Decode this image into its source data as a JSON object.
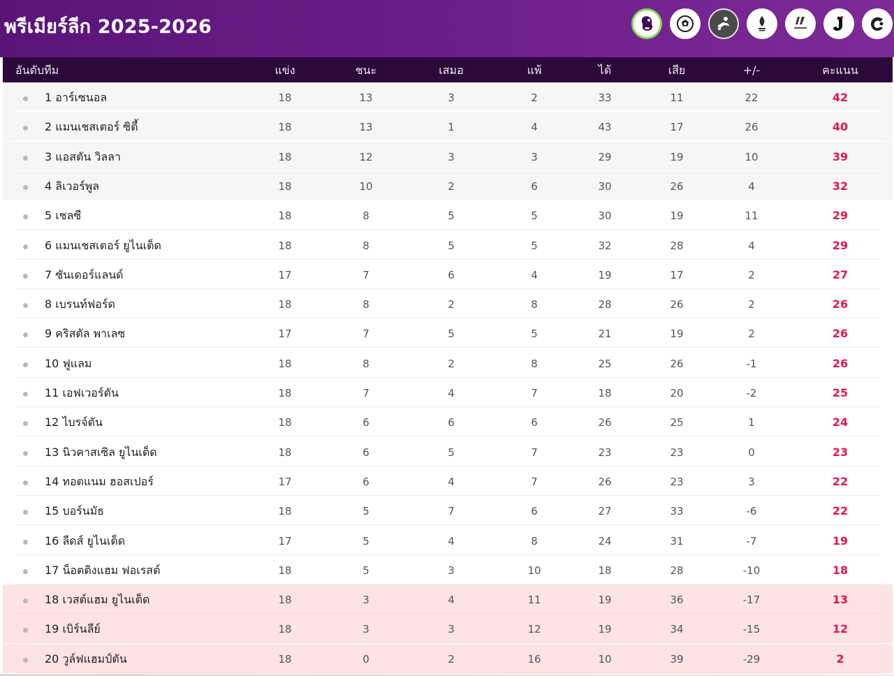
{
  "header": {
    "title": "พรีเมียร์ลีก 2025-2026",
    "leagues": [
      {
        "icon": "premier-league-icon",
        "active": true
      },
      {
        "icon": "champions-league-icon",
        "active": false
      },
      {
        "icon": "bundesliga-icon",
        "active": false
      },
      {
        "icon": "serie-a-icon",
        "active": false
      },
      {
        "icon": "laliga-icon",
        "active": false
      },
      {
        "icon": "j-league-icon",
        "active": false
      },
      {
        "icon": "thai-league-icon",
        "active": false
      }
    ]
  },
  "table": {
    "columns": {
      "team": "อันดับทีม",
      "played": "แข่ง",
      "won": "ชนะ",
      "drawn": "เสมอ",
      "lost": "แพ้",
      "gf": "ได้",
      "ga": "เสีย",
      "gd": "+/-",
      "pts": "คะแนน"
    },
    "colors": {
      "header_bg": "#2b0a3a",
      "points": "#e0194f",
      "top_zone_bg": "#f6f6f6",
      "relegation_bg": "#fde3e3"
    },
    "rows": [
      {
        "team": "1 อาร์เซนอล",
        "played": "18",
        "won": "13",
        "drawn": "3",
        "lost": "2",
        "gf": "33",
        "ga": "11",
        "gd": "22",
        "pts": "42",
        "zone": "top"
      },
      {
        "team": "2 แมนเชสเตอร์ ซิตี้",
        "played": "18",
        "won": "13",
        "drawn": "1",
        "lost": "4",
        "gf": "43",
        "ga": "17",
        "gd": "26",
        "pts": "40",
        "zone": "top"
      },
      {
        "team": "3 แอสตัน วิลลา",
        "played": "18",
        "won": "12",
        "drawn": "3",
        "lost": "3",
        "gf": "29",
        "ga": "19",
        "gd": "10",
        "pts": "39",
        "zone": "top"
      },
      {
        "team": "4 ลิเวอร์พูล",
        "played": "18",
        "won": "10",
        "drawn": "2",
        "lost": "6",
        "gf": "30",
        "ga": "26",
        "gd": "4",
        "pts": "32",
        "zone": "top"
      },
      {
        "team": "5 เชลซี",
        "played": "18",
        "won": "8",
        "drawn": "5",
        "lost": "5",
        "gf": "30",
        "ga": "19",
        "gd": "11",
        "pts": "29",
        "zone": "normal"
      },
      {
        "team": "6 แมนเชสเตอร์ ยูไนเต็ด",
        "played": "18",
        "won": "8",
        "drawn": "5",
        "lost": "5",
        "gf": "32",
        "ga": "28",
        "gd": "4",
        "pts": "29",
        "zone": "normal"
      },
      {
        "team": "7 ซันเดอร์แลนด์",
        "played": "17",
        "won": "7",
        "drawn": "6",
        "lost": "4",
        "gf": "19",
        "ga": "17",
        "gd": "2",
        "pts": "27",
        "zone": "normal"
      },
      {
        "team": "8 เบรนท์ฟอร์ด",
        "played": "18",
        "won": "8",
        "drawn": "2",
        "lost": "8",
        "gf": "28",
        "ga": "26",
        "gd": "2",
        "pts": "26",
        "zone": "normal"
      },
      {
        "team": "9 คริสตัล พาเลซ",
        "played": "17",
        "won": "7",
        "drawn": "5",
        "lost": "5",
        "gf": "21",
        "ga": "19",
        "gd": "2",
        "pts": "26",
        "zone": "normal"
      },
      {
        "team": "10 ฟูแลม",
        "played": "18",
        "won": "8",
        "drawn": "2",
        "lost": "8",
        "gf": "25",
        "ga": "26",
        "gd": "-1",
        "pts": "26",
        "zone": "normal"
      },
      {
        "team": "11 เอฟเวอร์ตัน",
        "played": "18",
        "won": "7",
        "drawn": "4",
        "lost": "7",
        "gf": "18",
        "ga": "20",
        "gd": "-2",
        "pts": "25",
        "zone": "normal"
      },
      {
        "team": "12 ไบรจ์ตัน",
        "played": "18",
        "won": "6",
        "drawn": "6",
        "lost": "6",
        "gf": "26",
        "ga": "25",
        "gd": "1",
        "pts": "24",
        "zone": "normal"
      },
      {
        "team": "13 นิวคาสเซิล ยูไนเต็ด",
        "played": "18",
        "won": "6",
        "drawn": "5",
        "lost": "7",
        "gf": "23",
        "ga": "23",
        "gd": "0",
        "pts": "23",
        "zone": "normal"
      },
      {
        "team": "14 ทอตแนม ฮอสเปอร์",
        "played": "17",
        "won": "6",
        "drawn": "4",
        "lost": "7",
        "gf": "26",
        "ga": "23",
        "gd": "3",
        "pts": "22",
        "zone": "normal"
      },
      {
        "team": "15 บอร์นมัธ",
        "played": "18",
        "won": "5",
        "drawn": "7",
        "lost": "6",
        "gf": "27",
        "ga": "33",
        "gd": "-6",
        "pts": "22",
        "zone": "normal"
      },
      {
        "team": "16 ลีดส์ ยูไนเต็ด",
        "played": "17",
        "won": "5",
        "drawn": "4",
        "lost": "8",
        "gf": "24",
        "ga": "31",
        "gd": "-7",
        "pts": "19",
        "zone": "normal"
      },
      {
        "team": "17 น็อตติงแฮม ฟอเรสต์",
        "played": "18",
        "won": "5",
        "drawn": "3",
        "lost": "10",
        "gf": "18",
        "ga": "28",
        "gd": "-10",
        "pts": "18",
        "zone": "normal"
      },
      {
        "team": "18 เวสต์แฮม ยูไนเต็ด",
        "played": "18",
        "won": "3",
        "drawn": "4",
        "lost": "11",
        "gf": "19",
        "ga": "36",
        "gd": "-17",
        "pts": "13",
        "zone": "relegation"
      },
      {
        "team": "19 เบิร์นลีย์",
        "played": "18",
        "won": "3",
        "drawn": "3",
        "lost": "12",
        "gf": "19",
        "ga": "34",
        "gd": "-15",
        "pts": "12",
        "zone": "relegation"
      },
      {
        "team": "20 วูล์ฟแฮมป์ตัน",
        "played": "18",
        "won": "0",
        "drawn": "2",
        "lost": "16",
        "gf": "10",
        "ga": "39",
        "gd": "-29",
        "pts": "2",
        "zone": "relegation"
      }
    ]
  }
}
